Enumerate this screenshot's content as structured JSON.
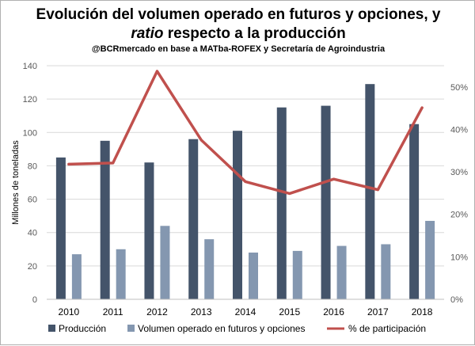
{
  "header": {
    "title_line1": "Evolución del volumen operado en futuros y opciones, y",
    "title_line2_italic": "ratio",
    "title_line2_rest": " respecto a la producción",
    "subtitle": "@BCRmercado en base a MATba-ROFEX y Secretaría de Agroindustria"
  },
  "chart_data": {
    "type": "bar",
    "categories": [
      "2010",
      "2011",
      "2012",
      "2013",
      "2014",
      "2015",
      "2016",
      "2017",
      "2018"
    ],
    "series": [
      {
        "name": "Producción",
        "type": "bar",
        "axis": "left",
        "color": "#44546a",
        "values": [
          85,
          95,
          82,
          96,
          101,
          115,
          116,
          129,
          105
        ]
      },
      {
        "name": "Volumen operado en futuros y opciones",
        "type": "bar",
        "axis": "left",
        "color": "#8497b0",
        "values": [
          27,
          30,
          44,
          36,
          28,
          29,
          32,
          33,
          47
        ]
      },
      {
        "name": "% de participación",
        "type": "line",
        "axis": "right",
        "color": "#c0504d",
        "values": [
          31.8,
          32.1,
          53.7,
          37.5,
          27.7,
          24.9,
          28.3,
          25.8,
          45.1
        ]
      }
    ],
    "ylabel": "Millones de toneladas",
    "ylim": [
      0,
      140
    ],
    "yticks": [
      "0",
      "20",
      "40",
      "60",
      "80",
      "100",
      "120",
      "140"
    ],
    "y2lim": [
      0,
      55
    ],
    "y2ticks": [
      "0%",
      "10%",
      "20%",
      "30%",
      "40%",
      "50%"
    ],
    "grid": true,
    "legend_position": "bottom"
  }
}
